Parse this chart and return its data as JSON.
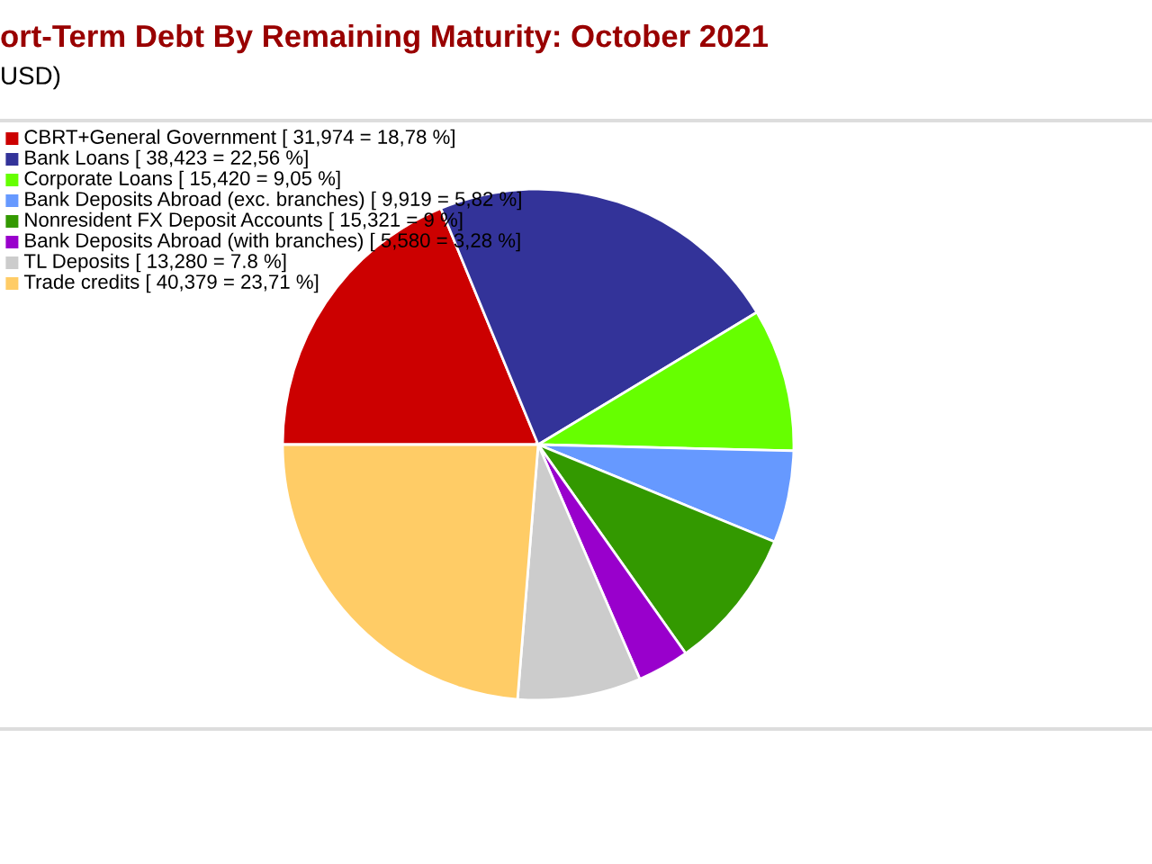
{
  "chart_data": {
    "type": "pie",
    "title": "ort-Term Debt By Remaining Maturity: October 2021",
    "subtitle": "USD)",
    "categories": [
      "CBRT+General Government [ 31,974 = 18,78 %]",
      "Bank Loans [ 38,423 = 22,56 %]",
      "Corporate Loans [ 15,420 = 9,05 %]",
      "Bank Deposits Abroad (exc. branches) [ 9,919 = 5,82 %]",
      "Nonresident FX Deposit Accounts [ 15,321 = 9 %]",
      "Bank Deposits Abroad (with branches) [ 5,580 = 3,28 %]",
      "TL Deposits [ 13,280 = 7.8 %]",
      "Trade credits [ 40,379 = 23,71 %]"
    ],
    "values": [
      18.78,
      22.56,
      9.05,
      5.82,
      9,
      3.28,
      7.8,
      23.71
    ],
    "colors": [
      "#cc0000",
      "#333399",
      "#66ff00",
      "#6699ff",
      "#339900",
      "#9900cc",
      "#cccccc",
      "#ffcc66"
    ],
    "legend": "top left"
  }
}
